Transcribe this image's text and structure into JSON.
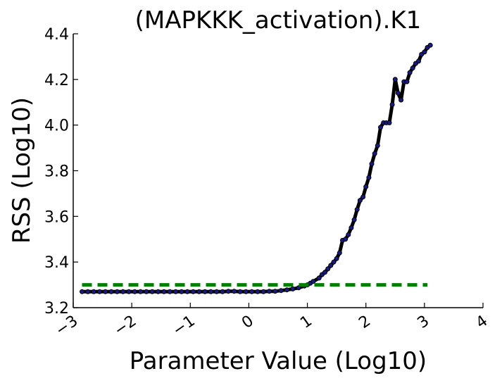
{
  "chart_data": {
    "type": "line",
    "title": "(MAPKKK_activation).K1",
    "xlabel": "Parameter Value (Log10)",
    "ylabel": "RSS (Log10)",
    "xlim": [
      -3,
      4
    ],
    "ylim": [
      3.2,
      4.4
    ],
    "x_ticks": [
      -3,
      -2,
      -1,
      0,
      1,
      2,
      3,
      4
    ],
    "x_tick_labels": [
      "−3",
      "−2",
      "−1",
      "0",
      "1",
      "2",
      "3",
      "4"
    ],
    "y_ticks": [
      3.2,
      3.4,
      3.6,
      3.8,
      4.0,
      4.2,
      4.4
    ],
    "y_tick_labels": [
      "3.2",
      "3.4",
      "3.6",
      "3.8",
      "4.0",
      "4.2",
      "4.4"
    ],
    "grid": false,
    "series": [
      {
        "style": "solid",
        "color": "#000000",
        "marker_color": "#1a1a80",
        "points": [
          [
            -2.85,
            3.27
          ],
          [
            -2.75,
            3.27
          ],
          [
            -2.65,
            3.27
          ],
          [
            -2.55,
            3.27
          ],
          [
            -2.45,
            3.27
          ],
          [
            -2.35,
            3.27
          ],
          [
            -2.25,
            3.27
          ],
          [
            -2.15,
            3.27
          ],
          [
            -2.05,
            3.27
          ],
          [
            -1.95,
            3.27
          ],
          [
            -1.85,
            3.27
          ],
          [
            -1.75,
            3.27
          ],
          [
            -1.65,
            3.27
          ],
          [
            -1.55,
            3.27
          ],
          [
            -1.45,
            3.27
          ],
          [
            -1.35,
            3.27
          ],
          [
            -1.25,
            3.27
          ],
          [
            -1.15,
            3.27
          ],
          [
            -1.05,
            3.27
          ],
          [
            -0.95,
            3.27
          ],
          [
            -0.85,
            3.27
          ],
          [
            -0.75,
            3.27
          ],
          [
            -0.65,
            3.27
          ],
          [
            -0.55,
            3.27
          ],
          [
            -0.45,
            3.27
          ],
          [
            -0.35,
            3.272
          ],
          [
            -0.25,
            3.272
          ],
          [
            -0.15,
            3.27
          ],
          [
            -0.05,
            3.27
          ],
          [
            0.05,
            3.27
          ],
          [
            0.15,
            3.27
          ],
          [
            0.25,
            3.27
          ],
          [
            0.35,
            3.272
          ],
          [
            0.45,
            3.272
          ],
          [
            0.55,
            3.275
          ],
          [
            0.65,
            3.278
          ],
          [
            0.75,
            3.282
          ],
          [
            0.85,
            3.287
          ],
          [
            0.95,
            3.295
          ],
          [
            1.0,
            3.3
          ],
          [
            1.05,
            3.307
          ],
          [
            1.1,
            3.315
          ],
          [
            1.2,
            3.33
          ],
          [
            1.25,
            3.345
          ],
          [
            1.3,
            3.355
          ],
          [
            1.35,
            3.37
          ],
          [
            1.4,
            3.385
          ],
          [
            1.45,
            3.4
          ],
          [
            1.5,
            3.415
          ],
          [
            1.55,
            3.44
          ],
          [
            1.6,
            3.495
          ],
          [
            1.65,
            3.5
          ],
          [
            1.7,
            3.52
          ],
          [
            1.75,
            3.55
          ],
          [
            1.8,
            3.585
          ],
          [
            1.85,
            3.63
          ],
          [
            1.9,
            3.67
          ],
          [
            1.95,
            3.685
          ],
          [
            2.0,
            3.73
          ],
          [
            2.05,
            3.77
          ],
          [
            2.1,
            3.83
          ],
          [
            2.15,
            3.875
          ],
          [
            2.2,
            3.91
          ],
          [
            2.25,
            3.99
          ],
          [
            2.3,
            4.01
          ],
          [
            2.35,
            4.01
          ],
          [
            2.4,
            4.01
          ],
          [
            2.45,
            4.09
          ],
          [
            2.5,
            4.2
          ],
          [
            2.55,
            4.14
          ],
          [
            2.6,
            4.11
          ],
          [
            2.65,
            4.19
          ],
          [
            2.7,
            4.19
          ],
          [
            2.75,
            4.23
          ],
          [
            2.8,
            4.25
          ],
          [
            2.85,
            4.27
          ],
          [
            2.9,
            4.28
          ],
          [
            2.95,
            4.31
          ],
          [
            3.0,
            4.32
          ],
          [
            3.05,
            4.34
          ],
          [
            3.1,
            4.35
          ]
        ]
      },
      {
        "style": "dashed",
        "color": "#007f00",
        "points": [
          [
            -2.85,
            3.3
          ],
          [
            3.05,
            3.3
          ]
        ]
      }
    ]
  }
}
